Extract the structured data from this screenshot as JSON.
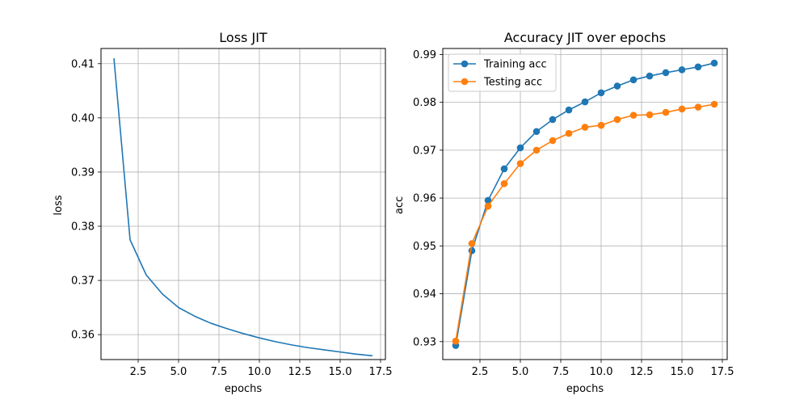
{
  "chart_data": [
    {
      "type": "line",
      "title": "Loss JIT",
      "xlabel": "epochs",
      "ylabel": "loss",
      "xlim": [
        0.2,
        17.8
      ],
      "ylim": [
        0.3554,
        0.4128
      ],
      "xticks": [
        2.5,
        5.0,
        7.5,
        10.0,
        12.5,
        15.0,
        17.5
      ],
      "xtick_labels": [
        "2.5",
        "5.0",
        "7.5",
        "10.0",
        "12.5",
        "15.0",
        "17.5"
      ],
      "yticks": [
        0.36,
        0.37,
        0.38,
        0.39,
        0.4,
        0.41
      ],
      "ytick_labels": [
        "0.36",
        "0.37",
        "0.38",
        "0.39",
        "0.40",
        "0.41"
      ],
      "grid": true,
      "series": [
        {
          "color": "#1f77b4",
          "marker": false,
          "x": [
            1,
            2,
            3,
            4,
            5,
            6,
            7,
            8,
            9,
            10,
            11,
            12,
            13,
            14,
            15,
            16,
            17
          ],
          "y": [
            0.411,
            0.3775,
            0.371,
            0.3675,
            0.365,
            0.3634,
            0.3621,
            0.3611,
            0.3602,
            0.3594,
            0.3587,
            0.3581,
            0.3576,
            0.3572,
            0.3568,
            0.3564,
            0.3561
          ]
        }
      ]
    },
    {
      "type": "line",
      "title": "Accuracy JIT over epochs",
      "xlabel": "epochs",
      "ylabel": "acc",
      "xlim": [
        0.2,
        17.8
      ],
      "ylim": [
        0.92625,
        0.99125
      ],
      "xticks": [
        2.5,
        5.0,
        7.5,
        10.0,
        12.5,
        15.0,
        17.5
      ],
      "xtick_labels": [
        "2.5",
        "5.0",
        "7.5",
        "10.0",
        "12.5",
        "15.0",
        "17.5"
      ],
      "yticks": [
        0.93,
        0.94,
        0.95,
        0.96,
        0.97,
        0.98,
        0.99
      ],
      "ytick_labels": [
        "0.93",
        "0.94",
        "0.95",
        "0.96",
        "0.97",
        "0.98",
        "0.99"
      ],
      "grid": true,
      "legend": "top-left",
      "series": [
        {
          "name": "Training acc",
          "color": "#1f77b4",
          "marker": true,
          "x": [
            1,
            2,
            3,
            4,
            5,
            6,
            7,
            8,
            9,
            10,
            11,
            12,
            13,
            14,
            15,
            16,
            17
          ],
          "y": [
            0.9292,
            0.949,
            0.9595,
            0.9661,
            0.9705,
            0.9739,
            0.9764,
            0.9784,
            0.9801,
            0.982,
            0.9834,
            0.9847,
            0.9855,
            0.9862,
            0.9868,
            0.9874,
            0.9882
          ]
        },
        {
          "name": "Testing acc",
          "color": "#ff7f0e",
          "marker": true,
          "x": [
            1,
            2,
            3,
            4,
            5,
            6,
            7,
            8,
            9,
            10,
            11,
            12,
            13,
            14,
            15,
            16,
            17
          ],
          "y": [
            0.9301,
            0.9505,
            0.9583,
            0.963,
            0.9672,
            0.97,
            0.972,
            0.9735,
            0.9748,
            0.9752,
            0.9764,
            0.9773,
            0.9774,
            0.9779,
            0.9786,
            0.979,
            0.9796
          ]
        }
      ]
    }
  ]
}
